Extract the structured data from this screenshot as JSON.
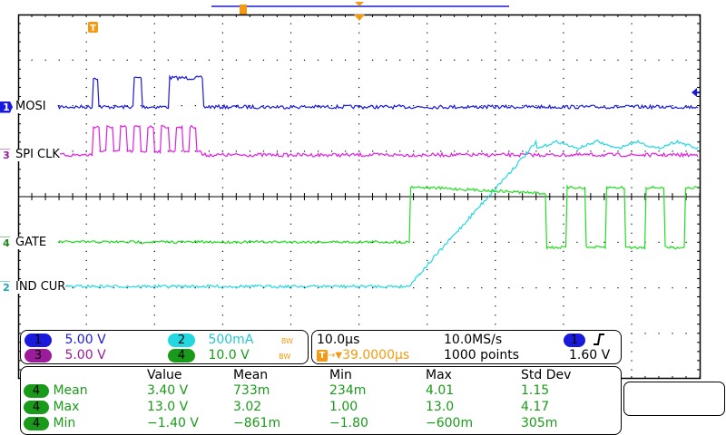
{
  "colors": {
    "ch1": "#1a1adc",
    "ch2": "#22d8e0",
    "ch3": "#e01ee0",
    "ch4": "#22dd22",
    "trigger": "#f39a12",
    "grid": "#000000",
    "meas_text": "#1a9a1a"
  },
  "channels": [
    {
      "num": "1",
      "label": "MOSI",
      "scale": "5.00 V",
      "bw": ""
    },
    {
      "num": "2",
      "label": "IND CUR",
      "scale": "500mA",
      "bw": "BW"
    },
    {
      "num": "3",
      "label": "SPI CLK",
      "scale": "5.00 V",
      "bw": ""
    },
    {
      "num": "4",
      "label": "GATE",
      "scale": "10.0 V",
      "bw": "BW"
    }
  ],
  "timebase": {
    "time_per_div": "10.0µs",
    "sample_rate": "10.0MS/s",
    "record_length": "1000 points",
    "trigger_position": "39.0000µs",
    "trigger_source": "1",
    "trigger_slope": "rising-edge",
    "trigger_level": "1.60 V"
  },
  "measurements": {
    "headers": [
      "Value",
      "Mean",
      "Min",
      "Max",
      "Std Dev"
    ],
    "rows": [
      {
        "source": "4",
        "name": "Mean",
        "values": [
          "3.40 V",
          "733m",
          "234m",
          "4.01",
          "1.15"
        ]
      },
      {
        "source": "4",
        "name": "Max",
        "values": [
          "13.0 V",
          "3.02",
          "1.00",
          "13.0",
          "4.17"
        ]
      },
      {
        "source": "4",
        "name": "Min",
        "values": [
          "−1.40 V",
          "−861m",
          "−1.80",
          "−600m",
          "305m"
        ]
      }
    ]
  },
  "markers": {
    "trigger_marker": "T",
    "trigger_pos_symbol": "→▼"
  }
}
